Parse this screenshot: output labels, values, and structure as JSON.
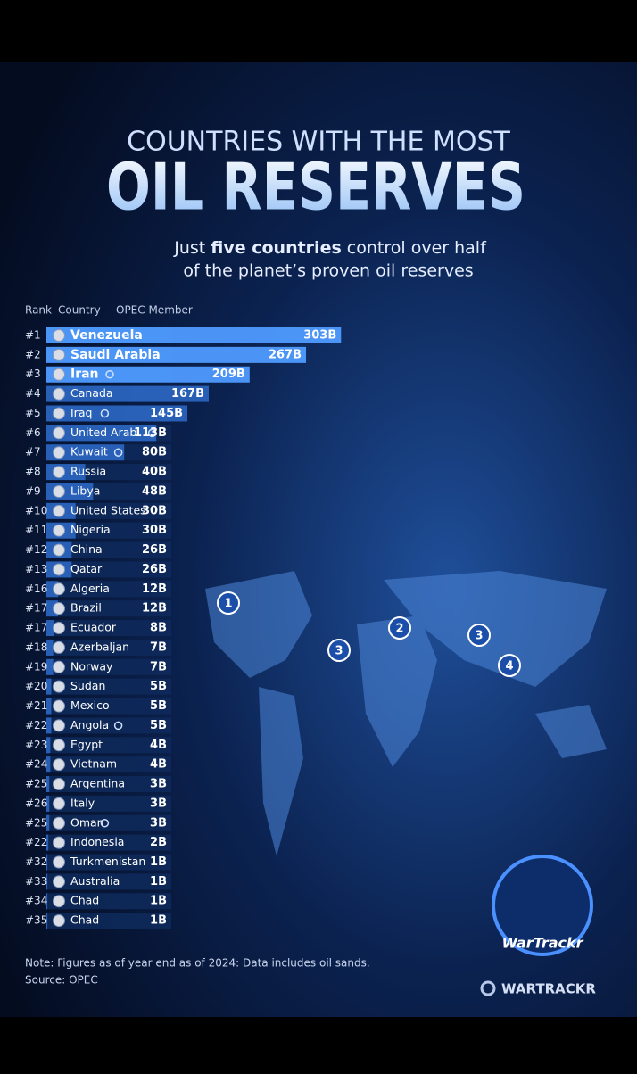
{
  "header": {
    "kicker": "COUNTRIES WITH THE MOST",
    "title": "OIL RESERVES",
    "subtitle_parts": [
      "Just ",
      "five countries",
      " control over half"
    ],
    "subtitle_line2": "of the planet’s proven oil reserves"
  },
  "chart_data": {
    "type": "bar",
    "orientation": "horizontal",
    "color": "#2f6fd0",
    "highlight_color": "#4f9bff",
    "column_headers": [
      "Rank",
      "Country",
      "OPEC Member"
    ],
    "ranks": [
      "#1",
      "#2",
      "#3",
      "#4",
      "#5",
      "#6",
      "#7",
      "#8",
      "#9",
      "#10",
      "#11",
      "#12",
      "#13",
      "#16",
      "#17",
      "#17",
      "#18",
      "#19",
      "#20",
      "#21",
      "#22",
      "#23",
      "#24",
      "#25",
      "#26",
      "#25",
      "#22",
      "#32",
      "#33",
      "#34",
      "#35"
    ],
    "categories": [
      "Venezuela",
      "Saudi Arabia",
      "Iran",
      "Canada",
      "Iraq",
      "United Arab",
      "Kuwait",
      "Russia",
      "Libya",
      "United States",
      "Nigeria",
      "China",
      "Qatar",
      "Algeria",
      "Brazil",
      "Ecuador",
      "Azerbaljan",
      "Norway",
      "Sudan",
      "Mexico",
      "Angola",
      "Egypt",
      "Vietnam",
      "Argentina",
      "Italy",
      "Oman",
      "Indonesia",
      "Turkmenistan",
      "Australia",
      "Chad",
      "Chad"
    ],
    "opec_member": [
      false,
      false,
      true,
      false,
      true,
      true,
      true,
      false,
      false,
      false,
      false,
      false,
      false,
      false,
      false,
      false,
      false,
      false,
      false,
      false,
      true,
      false,
      false,
      false,
      false,
      true,
      false,
      false,
      false,
      false,
      false
    ],
    "values": [
      303,
      267,
      209,
      167,
      145,
      113,
      80,
      40,
      48,
      30,
      30,
      26,
      26,
      12,
      12,
      8,
      7,
      7,
      5,
      5,
      5,
      4,
      4,
      3,
      3,
      3,
      2,
      1,
      1,
      1,
      1
    ],
    "value_labels": [
      "303B",
      "267B",
      "209B",
      "167B",
      "145B",
      "113B",
      "80B",
      "40B",
      "48B",
      "30B",
      "30B",
      "26B",
      "26B",
      "12B",
      "12B",
      "8B",
      "7B",
      "7B",
      "5B",
      "5B",
      "5B",
      "4B",
      "4B",
      "3B",
      "3B",
      "3B",
      "2B",
      "1B",
      "1B",
      "1B",
      "1B"
    ]
  },
  "map_markers": [
    "1",
    "2",
    "3",
    "3",
    "4"
  ],
  "logo": "WarTrackr",
  "footer": {
    "note": "Note: Figures as of year end as of 2024: Data includes oil sands.",
    "source": "Source: OPEC",
    "brand": "WARTRACKR"
  }
}
